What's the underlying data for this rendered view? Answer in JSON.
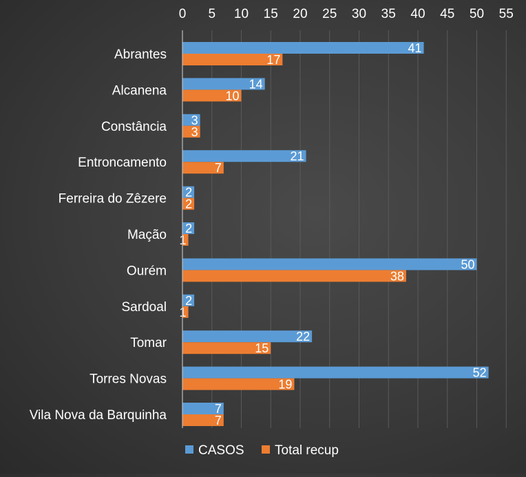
{
  "chart_data": {
    "type": "bar",
    "orientation": "horizontal",
    "categories": [
      "Abrantes",
      "Alcanena",
      "Constância",
      "Entroncamento",
      "Ferreira do Zêzere",
      "Mação",
      "Ourém",
      "Sardoal",
      "Tomar",
      "Torres Novas",
      "Vila Nova da Barquinha"
    ],
    "series": [
      {
        "name": "CASOS",
        "color": "#5b9bd5",
        "values": [
          41,
          14,
          3,
          21,
          2,
          2,
          50,
          2,
          22,
          52,
          7
        ]
      },
      {
        "name": "Total recup",
        "color": "#ed7d31",
        "values": [
          17,
          10,
          3,
          7,
          2,
          1,
          38,
          1,
          15,
          19,
          7
        ]
      }
    ],
    "xlim": [
      0,
      55
    ],
    "xticks": [
      0,
      5,
      10,
      15,
      20,
      25,
      30,
      35,
      40,
      45,
      50,
      55
    ],
    "x_axis_position": "top",
    "grid": true,
    "legend": "bottom",
    "data_labels": true
  }
}
